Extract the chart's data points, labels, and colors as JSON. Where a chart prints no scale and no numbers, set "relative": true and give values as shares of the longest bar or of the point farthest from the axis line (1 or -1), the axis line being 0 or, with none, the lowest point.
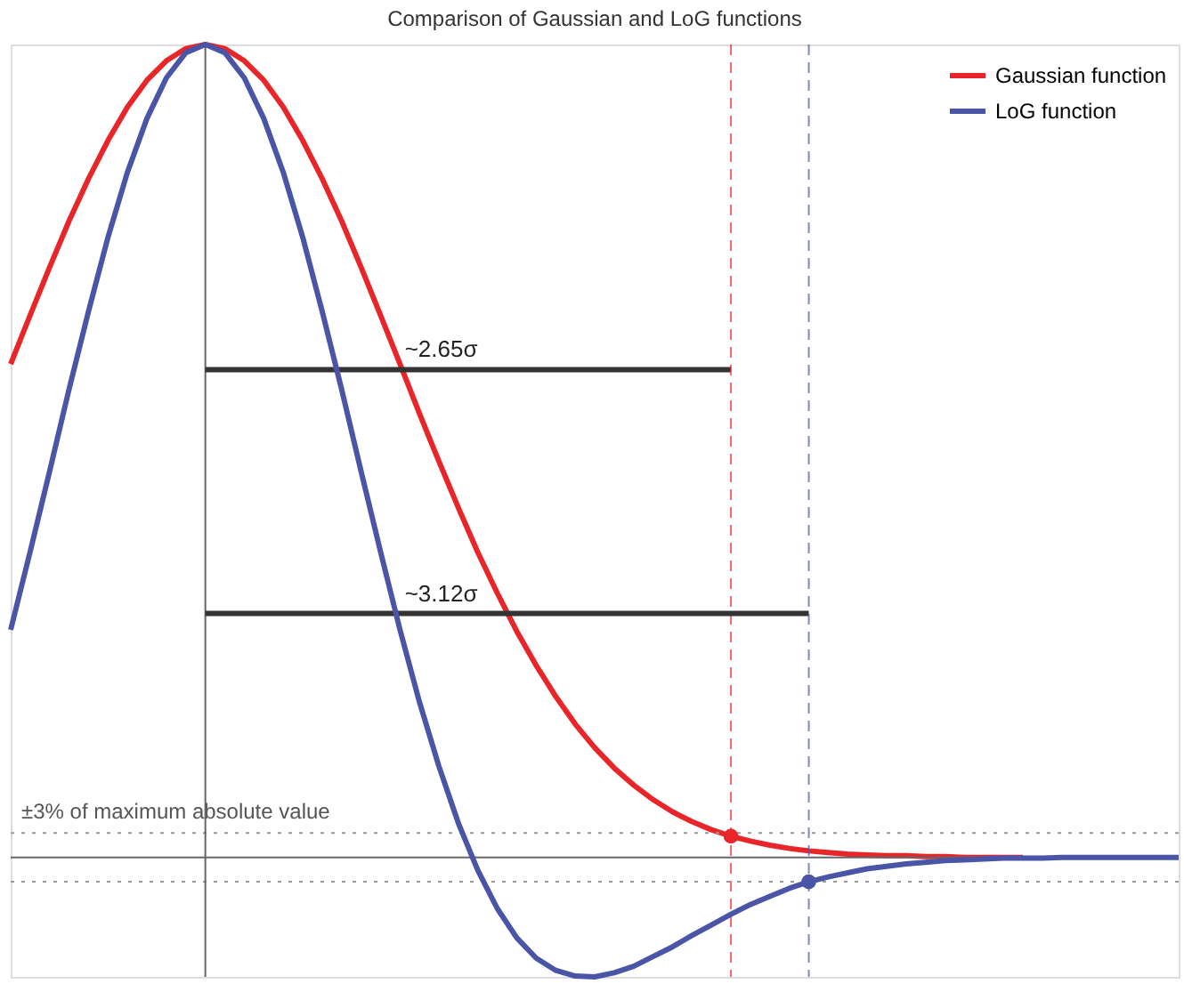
{
  "chart_data": {
    "type": "line",
    "title": "Comparison of Gaussian and LoG functions",
    "relative": true,
    "tick_labels": false,
    "legend": "top right",
    "line_style": "solid",
    "marker": "none",
    "categories": [
      null,
      null,
      null,
      null,
      null,
      null,
      null,
      null,
      null,
      null,
      null,
      null,
      null,
      null,
      null,
      null,
      null,
      null,
      null,
      null,
      null,
      null,
      null,
      null,
      null,
      null,
      null,
      null,
      null,
      null,
      null,
      null,
      null,
      null,
      null,
      null,
      null,
      null,
      null,
      null,
      null,
      null,
      null,
      null,
      null,
      null,
      null,
      null,
      null,
      null,
      null,
      null,
      null,
      null,
      null,
      null,
      null,
      null,
      null,
      null,
      null
    ],
    "series": [
      {
        "name": "Gaussian function",
        "color": "#e8262a",
        "values": [
          0.607,
          0.667,
          0.726,
          0.783,
          0.835,
          0.882,
          0.923,
          0.956,
          0.98,
          0.995,
          1,
          0.995,
          0.98,
          0.956,
          0.923,
          0.882,
          0.835,
          0.783,
          0.726,
          0.667,
          0.607,
          0.546,
          0.487,
          0.43,
          0.375,
          0.325,
          0.278,
          0.236,
          0.198,
          0.164,
          0.135,
          0.11,
          0.089,
          0.071,
          0.056,
          0.044,
          0.034,
          0.026,
          0.02,
          0.015,
          0.011,
          0.008,
          0.006,
          0.004,
          0.003,
          0.002,
          0.002,
          0.001,
          0.001,
          0,
          0,
          0,
          0,
          null,
          null,
          null,
          null,
          null,
          null,
          null,
          null
        ]
      },
      {
        "name": "LoG function",
        "color": "#4a55a8",
        "values": [
          0.28,
          0.376,
          0.475,
          0.576,
          0.672,
          0.763,
          0.843,
          0.909,
          0.959,
          0.99,
          1,
          0.99,
          0.959,
          0.909,
          0.843,
          0.763,
          0.672,
          0.576,
          0.475,
          0.376,
          0.28,
          0.191,
          0.112,
          0.042,
          -0.016,
          -0.063,
          -0.099,
          -0.124,
          -0.139,
          -0.146,
          -0.147,
          -0.142,
          -0.134,
          -0.122,
          -0.11,
          -0.096,
          -0.083,
          -0.07,
          -0.058,
          -0.048,
          -0.038,
          -0.03,
          -0.024,
          -0.019,
          -0.014,
          -0.011,
          -0.008,
          -0.006,
          -0.004,
          -0.003,
          -0.002,
          -0.001,
          -0.001,
          -0.001,
          0,
          0,
          0,
          0,
          0,
          0,
          0
        ]
      }
    ],
    "ref_lines": [
      {
        "axis": "y",
        "value": 0,
        "color": "#666666",
        "line_style": "solid"
      },
      {
        "axis": "y",
        "value": 0.03,
        "color": "#999999",
        "line_style": "dotted",
        "label": "±3% of maximum absolute value"
      },
      {
        "axis": "y",
        "value": -0.03,
        "color": "#999999",
        "line_style": "dotted"
      },
      {
        "axis": "y",
        "value": 0.6,
        "color": "#333333",
        "line_style": "solid",
        "label": "~2.65σ"
      },
      {
        "axis": "y",
        "value": 0.3,
        "color": "#333333",
        "line_style": "solid",
        "label": "~3.12σ"
      }
    ]
  }
}
